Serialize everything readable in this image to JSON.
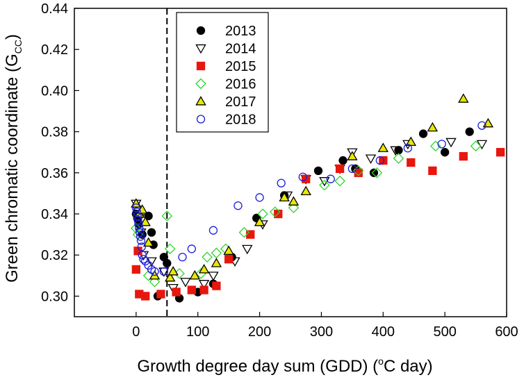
{
  "chart_data": {
    "type": "scatter",
    "title": "",
    "xlabel": {
      "prefix": "Growth degree day sum (GDD) (",
      "sup": "o",
      "suffix": "C day)"
    },
    "ylabel": {
      "prefix": "Green chromatic coordinate (G",
      "sub": "CC",
      "suffix": ")"
    },
    "xlim": [
      -100,
      600
    ],
    "ylim": [
      0.29,
      0.44
    ],
    "xticks": [
      0,
      100,
      200,
      300,
      400,
      500,
      600
    ],
    "yticks": [
      0.3,
      0.32,
      0.34,
      0.36,
      0.38,
      0.4,
      0.42,
      0.44
    ],
    "xtick_labels": [
      "0",
      "100",
      "200",
      "300",
      "400",
      "500",
      "600"
    ],
    "ytick_labels": [
      "0.30",
      "0.32",
      "0.34",
      "0.36",
      "0.38",
      "0.40",
      "0.42",
      "0.44"
    ],
    "reference_line": {
      "x": 50,
      "style": "dashed"
    },
    "legend_position": "top-center",
    "series": [
      {
        "name": "2013",
        "marker": "circle",
        "fill": "#000000",
        "stroke": "#000000",
        "points": [
          [
            0,
            0.34
          ],
          [
            2,
            0.338
          ],
          [
            5,
            0.335
          ],
          [
            10,
            0.33
          ],
          [
            20,
            0.339
          ],
          [
            25,
            0.331
          ],
          [
            28,
            0.325
          ],
          [
            35,
            0.3
          ],
          [
            45,
            0.319
          ],
          [
            50,
            0.316
          ],
          [
            70,
            0.299
          ],
          [
            100,
            0.302
          ],
          [
            125,
            0.306
          ],
          [
            155,
            0.319
          ],
          [
            195,
            0.338
          ],
          [
            240,
            0.349
          ],
          [
            295,
            0.361
          ],
          [
            335,
            0.366
          ],
          [
            355,
            0.362
          ],
          [
            385,
            0.36
          ],
          [
            425,
            0.371
          ],
          [
            465,
            0.379
          ],
          [
            500,
            0.37
          ],
          [
            540,
            0.38
          ]
        ]
      },
      {
        "name": "2014",
        "marker": "triangle-down",
        "fill": "none",
        "stroke": "#000000",
        "points": [
          [
            0,
            0.345
          ],
          [
            2,
            0.342
          ],
          [
            5,
            0.338
          ],
          [
            8,
            0.331
          ],
          [
            12,
            0.32
          ],
          [
            25,
            0.317
          ],
          [
            45,
            0.312
          ],
          [
            60,
            0.304
          ],
          [
            80,
            0.307
          ],
          [
            110,
            0.306
          ],
          [
            125,
            0.31
          ],
          [
            160,
            0.317
          ],
          [
            180,
            0.323
          ],
          [
            205,
            0.335
          ],
          [
            245,
            0.349
          ],
          [
            275,
            0.357
          ],
          [
            305,
            0.356
          ],
          [
            330,
            0.362
          ],
          [
            350,
            0.37
          ],
          [
            380,
            0.367
          ],
          [
            420,
            0.371
          ],
          [
            440,
            0.374
          ],
          [
            510,
            0.375
          ],
          [
            560,
            0.374
          ]
        ]
      },
      {
        "name": "2015",
        "marker": "square",
        "fill": "#e8160c",
        "stroke": "#e8160c",
        "points": [
          [
            0,
            0.313
          ],
          [
            3,
            0.322
          ],
          [
            5,
            0.301
          ],
          [
            15,
            0.3
          ],
          [
            40,
            0.301
          ],
          [
            65,
            0.302
          ],
          [
            90,
            0.303
          ],
          [
            110,
            0.303
          ],
          [
            130,
            0.305
          ],
          [
            150,
            0.318
          ],
          [
            185,
            0.33
          ],
          [
            230,
            0.34
          ],
          [
            275,
            0.357
          ],
          [
            330,
            0.362
          ],
          [
            360,
            0.36
          ],
          [
            400,
            0.366
          ],
          [
            445,
            0.365
          ],
          [
            480,
            0.361
          ],
          [
            530,
            0.368
          ],
          [
            590,
            0.37
          ]
        ]
      },
      {
        "name": "2016",
        "marker": "diamond",
        "fill": "none",
        "stroke": "#2dd42d",
        "points": [
          [
            0,
            0.333
          ],
          [
            3,
            0.33
          ],
          [
            20,
            0.31
          ],
          [
            30,
            0.307
          ],
          [
            50,
            0.339
          ],
          [
            55,
            0.323
          ],
          [
            70,
            0.311
          ],
          [
            105,
            0.311
          ],
          [
            115,
            0.319
          ],
          [
            130,
            0.321
          ],
          [
            145,
            0.323
          ],
          [
            175,
            0.331
          ],
          [
            205,
            0.34
          ],
          [
            225,
            0.341
          ],
          [
            255,
            0.343
          ],
          [
            305,
            0.354
          ],
          [
            330,
            0.356
          ],
          [
            360,
            0.361
          ],
          [
            390,
            0.36
          ],
          [
            425,
            0.367
          ],
          [
            485,
            0.373
          ],
          [
            550,
            0.373
          ]
        ]
      },
      {
        "name": "2017",
        "marker": "triangle-up",
        "fill": "#e8e800",
        "stroke": "#000000",
        "points": [
          [
            0,
            0.345
          ],
          [
            5,
            0.34
          ],
          [
            10,
            0.342
          ],
          [
            15,
            0.336
          ],
          [
            20,
            0.326
          ],
          [
            30,
            0.31
          ],
          [
            55,
            0.309
          ],
          [
            60,
            0.312
          ],
          [
            95,
            0.31
          ],
          [
            110,
            0.313
          ],
          [
            130,
            0.316
          ],
          [
            150,
            0.322
          ],
          [
            200,
            0.336
          ],
          [
            240,
            0.348
          ],
          [
            255,
            0.346
          ],
          [
            275,
            0.351
          ],
          [
            350,
            0.368
          ],
          [
            400,
            0.372
          ],
          [
            445,
            0.375
          ],
          [
            480,
            0.382
          ],
          [
            530,
            0.396
          ],
          [
            570,
            0.384
          ]
        ]
      },
      {
        "name": "2018",
        "marker": "circle",
        "fill": "none",
        "stroke": "#1c1cdc",
        "points": [
          [
            0,
            0.343
          ],
          [
            1,
            0.341
          ],
          [
            2,
            0.339
          ],
          [
            3,
            0.337
          ],
          [
            4,
            0.335
          ],
          [
            5,
            0.333
          ],
          [
            6,
            0.331
          ],
          [
            7,
            0.329
          ],
          [
            8,
            0.327
          ],
          [
            9,
            0.324
          ],
          [
            10,
            0.32
          ],
          [
            12,
            0.318
          ],
          [
            15,
            0.317
          ],
          [
            20,
            0.315
          ],
          [
            25,
            0.313
          ],
          [
            30,
            0.312
          ],
          [
            45,
            0.312
          ],
          [
            75,
            0.319
          ],
          [
            90,
            0.323
          ],
          [
            125,
            0.332
          ],
          [
            165,
            0.344
          ],
          [
            200,
            0.348
          ],
          [
            235,
            0.355
          ],
          [
            270,
            0.358
          ],
          [
            315,
            0.357
          ],
          [
            350,
            0.362
          ],
          [
            395,
            0.366
          ],
          [
            440,
            0.372
          ],
          [
            495,
            0.374
          ],
          [
            560,
            0.383
          ]
        ]
      }
    ]
  }
}
